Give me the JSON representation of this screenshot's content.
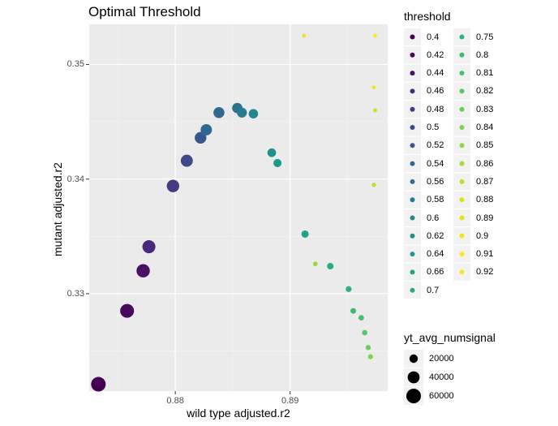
{
  "chart_data": {
    "type": "scatter",
    "title": "Optimal Threshold",
    "xlabel": "wild type adjusted.r2",
    "ylabel": "mutant adjusted.r2",
    "xlim": [
      0.8725,
      0.8985
    ],
    "ylim": [
      0.3215,
      0.3535
    ],
    "x_ticks": [
      0.88,
      0.89
    ],
    "x_tick_labels": [
      "0.88",
      "0.89"
    ],
    "y_ticks": [
      0.33,
      0.34,
      0.35
    ],
    "y_tick_labels": [
      "0.33",
      "0.34",
      "0.35"
    ],
    "grid": true,
    "legend_position": "right",
    "color_legend": {
      "title": "threshold",
      "entries": [
        {
          "label": "0.4",
          "color": "#440154"
        },
        {
          "label": "0.42",
          "color": "#46085c"
        },
        {
          "label": "0.44",
          "color": "#471164"
        },
        {
          "label": "0.46",
          "color": "#472a7a"
        },
        {
          "label": "0.48",
          "color": "#433a83"
        },
        {
          "label": "0.5",
          "color": "#3e4989"
        },
        {
          "label": "0.52",
          "color": "#38578c"
        },
        {
          "label": "0.54",
          "color": "#31688e"
        },
        {
          "label": "0.56",
          "color": "#2c728e"
        },
        {
          "label": "0.58",
          "color": "#287c8e"
        },
        {
          "label": "0.6",
          "color": "#24868e"
        },
        {
          "label": "0.62",
          "color": "#21908c"
        },
        {
          "label": "0.64",
          "color": "#1f9a8a"
        },
        {
          "label": "0.66",
          "color": "#20a386"
        },
        {
          "label": "0.7",
          "color": "#26ad81"
        },
        {
          "label": "0.75",
          "color": "#2eb37c"
        },
        {
          "label": "0.8",
          "color": "#3bbb75"
        },
        {
          "label": "0.81",
          "color": "#48c16e"
        },
        {
          "label": "0.82",
          "color": "#58c765"
        },
        {
          "label": "0.83",
          "color": "#6ccd5a"
        },
        {
          "label": "0.84",
          "color": "#7fd34e"
        },
        {
          "label": "0.85",
          "color": "#95d840"
        },
        {
          "label": "0.86",
          "color": "#a8db34"
        },
        {
          "label": "0.87",
          "color": "#bddf26"
        },
        {
          "label": "0.88",
          "color": "#d2e21b"
        },
        {
          "label": "0.89",
          "color": "#e5e419"
        },
        {
          "label": "0.9",
          "color": "#f1e51d"
        },
        {
          "label": "0.91",
          "color": "#fbe723"
        },
        {
          "label": "0.92",
          "color": "#fde725"
        }
      ]
    },
    "size_legend": {
      "title": "yt_avg_numsignal",
      "entries": [
        {
          "label": "20000",
          "value": 20000
        },
        {
          "label": "40000",
          "value": 40000
        },
        {
          "label": "60000",
          "value": 60000
        }
      ]
    },
    "points": [
      {
        "x": 0.8733,
        "y": 0.3221,
        "threshold": 0.4,
        "size": 60000,
        "color": "#440154"
      },
      {
        "x": 0.8758,
        "y": 0.3285,
        "threshold": 0.42,
        "size": 54000,
        "color": "#46085c"
      },
      {
        "x": 0.8772,
        "y": 0.332,
        "threshold": 0.44,
        "size": 50000,
        "color": "#471164"
      },
      {
        "x": 0.8777,
        "y": 0.3341,
        "threshold": 0.46,
        "size": 48000,
        "color": "#472a7a"
      },
      {
        "x": 0.8798,
        "y": 0.3394,
        "threshold": 0.48,
        "size": 44000,
        "color": "#433a83"
      },
      {
        "x": 0.881,
        "y": 0.3416,
        "threshold": 0.5,
        "size": 41000,
        "color": "#3e4989"
      },
      {
        "x": 0.8822,
        "y": 0.3436,
        "threshold": 0.52,
        "size": 38000,
        "color": "#38578c"
      },
      {
        "x": 0.8827,
        "y": 0.3443,
        "threshold": 0.54,
        "size": 36000,
        "color": "#31688e"
      },
      {
        "x": 0.8838,
        "y": 0.3458,
        "threshold": 0.56,
        "size": 34000,
        "color": "#31688e"
      },
      {
        "x": 0.8854,
        "y": 0.3462,
        "threshold": 0.58,
        "size": 30000,
        "color": "#2c728e"
      },
      {
        "x": 0.8858,
        "y": 0.3458,
        "threshold": 0.6,
        "size": 28000,
        "color": "#287c8e"
      },
      {
        "x": 0.8868,
        "y": 0.3457,
        "threshold": 0.62,
        "size": 25000,
        "color": "#24868e"
      },
      {
        "x": 0.8884,
        "y": 0.3423,
        "threshold": 0.64,
        "size": 21000,
        "color": "#21908c"
      },
      {
        "x": 0.8889,
        "y": 0.3414,
        "threshold": 0.66,
        "size": 19000,
        "color": "#1f9a8a"
      },
      {
        "x": 0.8913,
        "y": 0.3352,
        "threshold": 0.7,
        "size": 15000,
        "color": "#20a386"
      },
      {
        "x": 0.8935,
        "y": 0.3324,
        "threshold": 0.75,
        "size": 12000,
        "color": "#26ad81"
      },
      {
        "x": 0.8951,
        "y": 0.3304,
        "threshold": 0.8,
        "size": 10000,
        "color": "#2eb37c"
      },
      {
        "x": 0.8955,
        "y": 0.3285,
        "threshold": 0.81,
        "size": 9000,
        "color": "#3bbb75"
      },
      {
        "x": 0.8962,
        "y": 0.3279,
        "threshold": 0.82,
        "size": 8500,
        "color": "#48c16e"
      },
      {
        "x": 0.8965,
        "y": 0.3266,
        "threshold": 0.83,
        "size": 8000,
        "color": "#58c765"
      },
      {
        "x": 0.8968,
        "y": 0.3253,
        "threshold": 0.84,
        "size": 7500,
        "color": "#6ccd5a"
      },
      {
        "x": 0.897,
        "y": 0.3245,
        "threshold": 0.85,
        "size": 7000,
        "color": "#7fd34e"
      },
      {
        "x": 0.8922,
        "y": 0.3326,
        "threshold": 0.86,
        "size": 6000,
        "color": "#95d840"
      },
      {
        "x": 0.8973,
        "y": 0.3395,
        "threshold": 0.87,
        "size": 5000,
        "color": "#bddf26"
      },
      {
        "x": 0.8974,
        "y": 0.346,
        "threshold": 0.89,
        "size": 4500,
        "color": "#d2e21b"
      },
      {
        "x": 0.8973,
        "y": 0.348,
        "threshold": 0.9,
        "size": 4200,
        "color": "#f1e51d"
      },
      {
        "x": 0.8912,
        "y": 0.3525,
        "threshold": 0.91,
        "size": 4000,
        "color": "#e5e419"
      },
      {
        "x": 0.8974,
        "y": 0.3525,
        "threshold": 0.92,
        "size": 4000,
        "color": "#fde725"
      }
    ]
  }
}
